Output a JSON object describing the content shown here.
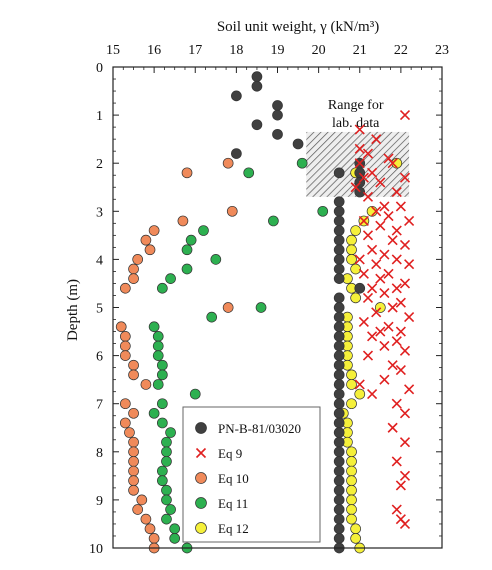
{
  "chart_data": {
    "type": "scatter",
    "xlabel": "Soil unit weight, γ (kN/m³)",
    "ylabel": "Depth (m)",
    "xlim": [
      15,
      23
    ],
    "ylim": [
      0,
      10
    ],
    "xticks": [
      "15",
      "16",
      "17",
      "18",
      "19",
      "20",
      "21",
      "22",
      "23"
    ],
    "yticks": [
      "0",
      "1",
      "2",
      "3",
      "4",
      "5",
      "6",
      "7",
      "8",
      "9",
      "10"
    ],
    "x_axis_position": "top",
    "y_axis_inverted": true,
    "grid": false,
    "legend_position": "bottom-center",
    "annotation": {
      "text_line1": "Range for",
      "text_line2": "lab. data",
      "x_range": [
        19.7,
        22.2
      ],
      "y_range": [
        1.35,
        2.7
      ]
    },
    "series": [
      {
        "name": "PN-B-81/03020",
        "marker": "circle",
        "color": "#404040",
        "points": [
          [
            18.5,
            0.2
          ],
          [
            18.5,
            0.4
          ],
          [
            18.0,
            0.6
          ],
          [
            19.0,
            0.8
          ],
          [
            19.0,
            1.0
          ],
          [
            18.5,
            1.2
          ],
          [
            19.0,
            1.4
          ],
          [
            19.5,
            1.6
          ],
          [
            18.0,
            1.8
          ],
          [
            21.0,
            2.0
          ],
          [
            20.5,
            2.2
          ],
          [
            21.0,
            2.2
          ],
          [
            21.0,
            2.4
          ],
          [
            21.0,
            2.6
          ],
          [
            20.5,
            2.8
          ],
          [
            20.5,
            3.0
          ],
          [
            20.5,
            3.2
          ],
          [
            20.5,
            3.4
          ],
          [
            20.5,
            3.6
          ],
          [
            20.5,
            3.8
          ],
          [
            20.5,
            4.0
          ],
          [
            20.5,
            4.2
          ],
          [
            20.5,
            4.4
          ],
          [
            21.0,
            4.6
          ],
          [
            20.5,
            4.8
          ],
          [
            20.5,
            5.0
          ],
          [
            20.5,
            5.2
          ],
          [
            20.5,
            5.4
          ],
          [
            20.5,
            5.6
          ],
          [
            20.5,
            5.8
          ],
          [
            20.5,
            6.0
          ],
          [
            20.5,
            6.2
          ],
          [
            20.5,
            6.4
          ],
          [
            20.5,
            6.6
          ],
          [
            20.5,
            6.8
          ],
          [
            20.5,
            7.0
          ],
          [
            20.5,
            7.2
          ],
          [
            20.5,
            7.4
          ],
          [
            20.5,
            7.6
          ],
          [
            20.5,
            7.8
          ],
          [
            20.5,
            8.0
          ],
          [
            20.5,
            8.2
          ],
          [
            20.5,
            8.4
          ],
          [
            20.5,
            8.6
          ],
          [
            20.5,
            8.8
          ],
          [
            20.5,
            9.0
          ],
          [
            20.5,
            9.2
          ],
          [
            20.5,
            9.4
          ],
          [
            20.5,
            9.6
          ],
          [
            20.5,
            9.8
          ],
          [
            20.5,
            10.0
          ]
        ]
      },
      {
        "name": "Eq 9",
        "marker": "x",
        "color": "#e02020",
        "points": [
          [
            22.1,
            1.0
          ],
          [
            21.0,
            1.3
          ],
          [
            21.4,
            1.5
          ],
          [
            21.0,
            1.7
          ],
          [
            21.2,
            1.8
          ],
          [
            21.7,
            1.9
          ],
          [
            21.0,
            2.0
          ],
          [
            21.8,
            2.0
          ],
          [
            21.3,
            2.2
          ],
          [
            21.1,
            2.3
          ],
          [
            22.1,
            2.3
          ],
          [
            21.5,
            2.4
          ],
          [
            20.9,
            2.5
          ],
          [
            21.9,
            2.6
          ],
          [
            21.2,
            2.7
          ],
          [
            21.6,
            2.9
          ],
          [
            22.0,
            2.9
          ],
          [
            21.4,
            3.0
          ],
          [
            21.7,
            3.1
          ],
          [
            21.1,
            3.2
          ],
          [
            22.2,
            3.2
          ],
          [
            21.5,
            3.3
          ],
          [
            21.9,
            3.4
          ],
          [
            21.2,
            3.5
          ],
          [
            21.8,
            3.6
          ],
          [
            22.1,
            3.7
          ],
          [
            21.3,
            3.8
          ],
          [
            21.6,
            3.9
          ],
          [
            21.0,
            4.0
          ],
          [
            21.9,
            4.0
          ],
          [
            21.4,
            4.1
          ],
          [
            22.2,
            4.1
          ],
          [
            21.7,
            4.3
          ],
          [
            21.1,
            4.3
          ],
          [
            21.5,
            4.4
          ],
          [
            22.1,
            4.5
          ],
          [
            21.3,
            4.6
          ],
          [
            21.9,
            4.6
          ],
          [
            21.6,
            4.7
          ],
          [
            21.2,
            4.8
          ],
          [
            22.0,
            4.9
          ],
          [
            21.8,
            5.0
          ],
          [
            21.4,
            5.1
          ],
          [
            22.2,
            5.2
          ],
          [
            21.1,
            5.3
          ],
          [
            21.7,
            5.4
          ],
          [
            21.5,
            5.5
          ],
          [
            22.0,
            5.5
          ],
          [
            21.3,
            5.6
          ],
          [
            21.9,
            5.7
          ],
          [
            21.6,
            5.8
          ],
          [
            22.1,
            5.9
          ],
          [
            21.2,
            6.0
          ],
          [
            21.8,
            6.2
          ],
          [
            22.0,
            6.3
          ],
          [
            21.6,
            6.5
          ],
          [
            21.0,
            6.6
          ],
          [
            22.2,
            6.7
          ],
          [
            21.3,
            6.8
          ],
          [
            21.9,
            7.0
          ],
          [
            22.1,
            7.2
          ],
          [
            21.8,
            7.5
          ],
          [
            22.1,
            7.8
          ],
          [
            21.9,
            8.2
          ],
          [
            22.1,
            8.5
          ],
          [
            22.0,
            8.7
          ],
          [
            21.9,
            9.2
          ],
          [
            22.0,
            9.4
          ],
          [
            22.1,
            9.5
          ]
        ]
      },
      {
        "name": "Eq 10",
        "marker": "circle",
        "color": "#f08a5a",
        "points": [
          [
            17.8,
            2.0
          ],
          [
            16.8,
            2.2
          ],
          [
            17.9,
            3.0
          ],
          [
            16.7,
            3.2
          ],
          [
            16.0,
            3.4
          ],
          [
            15.8,
            3.6
          ],
          [
            15.9,
            3.8
          ],
          [
            15.6,
            4.0
          ],
          [
            15.5,
            4.2
          ],
          [
            15.5,
            4.4
          ],
          [
            15.3,
            4.6
          ],
          [
            17.8,
            5.0
          ],
          [
            15.2,
            5.4
          ],
          [
            15.3,
            5.6
          ],
          [
            15.3,
            5.8
          ],
          [
            15.3,
            6.0
          ],
          [
            15.5,
            6.2
          ],
          [
            15.5,
            6.4
          ],
          [
            15.8,
            6.6
          ],
          [
            15.3,
            7.0
          ],
          [
            15.5,
            7.2
          ],
          [
            15.4,
            7.6
          ],
          [
            15.5,
            7.8
          ],
          [
            15.5,
            8.0
          ],
          [
            15.5,
            8.2
          ],
          [
            15.5,
            8.4
          ],
          [
            15.5,
            8.6
          ],
          [
            15.5,
            8.8
          ],
          [
            15.7,
            9.0
          ],
          [
            15.6,
            9.2
          ],
          [
            15.8,
            9.4
          ],
          [
            15.9,
            9.6
          ],
          [
            16.0,
            9.8
          ],
          [
            16.0,
            10.0
          ],
          [
            15.3,
            7.4
          ]
        ]
      },
      {
        "name": "Eq 11",
        "marker": "circle",
        "color": "#2db050",
        "points": [
          [
            18.3,
            2.2
          ],
          [
            19.6,
            2.0
          ],
          [
            20.1,
            3.0
          ],
          [
            18.9,
            3.2
          ],
          [
            17.2,
            3.4
          ],
          [
            16.9,
            3.6
          ],
          [
            16.8,
            3.8
          ],
          [
            17.5,
            4.0
          ],
          [
            16.8,
            4.2
          ],
          [
            16.4,
            4.4
          ],
          [
            16.2,
            4.6
          ],
          [
            18.6,
            5.0
          ],
          [
            17.4,
            5.2
          ],
          [
            16.0,
            5.4
          ],
          [
            16.1,
            5.6
          ],
          [
            16.1,
            5.8
          ],
          [
            16.1,
            6.0
          ],
          [
            16.2,
            6.2
          ],
          [
            16.2,
            6.4
          ],
          [
            16.1,
            6.6
          ],
          [
            17.0,
            6.8
          ],
          [
            16.2,
            7.0
          ],
          [
            16.0,
            7.2
          ],
          [
            16.4,
            7.6
          ],
          [
            16.3,
            7.8
          ],
          [
            16.3,
            8.0
          ],
          [
            16.3,
            8.2
          ],
          [
            16.2,
            8.4
          ],
          [
            16.2,
            8.6
          ],
          [
            16.3,
            8.8
          ],
          [
            16.3,
            9.0
          ],
          [
            16.4,
            9.2
          ],
          [
            16.3,
            9.4
          ],
          [
            16.5,
            9.6
          ],
          [
            16.5,
            9.8
          ],
          [
            16.8,
            10.0
          ],
          [
            16.2,
            7.4
          ]
        ]
      },
      {
        "name": "Eq 12",
        "marker": "circle",
        "color": "#f5f03a",
        "points": [
          [
            21.9,
            2.0
          ],
          [
            20.9,
            2.2
          ],
          [
            21.3,
            3.0
          ],
          [
            21.1,
            3.2
          ],
          [
            20.9,
            3.4
          ],
          [
            20.8,
            3.6
          ],
          [
            20.8,
            3.8
          ],
          [
            20.8,
            4.0
          ],
          [
            20.9,
            4.2
          ],
          [
            20.7,
            4.4
          ],
          [
            20.8,
            4.6
          ],
          [
            20.9,
            4.8
          ],
          [
            21.5,
            5.0
          ],
          [
            20.7,
            5.2
          ],
          [
            20.7,
            5.4
          ],
          [
            20.7,
            5.6
          ],
          [
            20.7,
            5.8
          ],
          [
            20.7,
            6.0
          ],
          [
            20.7,
            6.2
          ],
          [
            20.8,
            6.4
          ],
          [
            20.8,
            6.6
          ],
          [
            21.0,
            6.8
          ],
          [
            20.8,
            7.0
          ],
          [
            20.6,
            7.2
          ],
          [
            20.7,
            7.4
          ],
          [
            20.7,
            7.6
          ],
          [
            20.7,
            7.8
          ],
          [
            20.8,
            8.0
          ],
          [
            20.8,
            8.2
          ],
          [
            20.8,
            8.4
          ],
          [
            20.8,
            8.6
          ],
          [
            20.8,
            8.8
          ],
          [
            20.8,
            9.0
          ],
          [
            20.8,
            9.2
          ],
          [
            20.8,
            9.4
          ],
          [
            20.9,
            9.6
          ],
          [
            20.9,
            9.8
          ],
          [
            21.0,
            10.0
          ]
        ]
      }
    ]
  }
}
